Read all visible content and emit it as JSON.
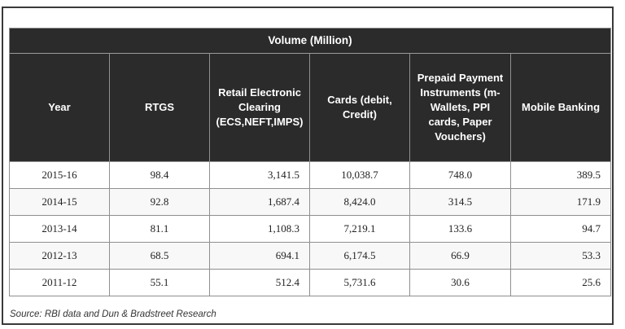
{
  "chart_data": {
    "type": "table",
    "title": "Volume (Million)",
    "columns": [
      "Year",
      "RTGS",
      "Retail Electronic Clearing (ECS,NEFT,IMPS)",
      "Cards (debit, Credit)",
      "Prepaid Payment Instruments (m-Wallets, PPI cards, Paper Vouchers)",
      "Mobile Banking"
    ],
    "rows": [
      [
        "2015-16",
        "98.4",
        "3,141.5",
        "10,038.7",
        "748.0",
        "389.5"
      ],
      [
        "2014-15",
        "92.8",
        "1,687.4",
        "8,424.0",
        "314.5",
        "171.9"
      ],
      [
        "2013-14",
        "81.1",
        "1,108.3",
        "7,219.1",
        "133.6",
        "94.7"
      ],
      [
        "2012-13",
        "68.5",
        "694.1",
        "6,174.5",
        "66.9",
        "53.3"
      ],
      [
        "2011-12",
        "55.1",
        "512.4",
        "5,731.6",
        "30.6",
        "25.6"
      ]
    ],
    "source": "Source: RBI data and Dun & Bradstreet Research"
  }
}
